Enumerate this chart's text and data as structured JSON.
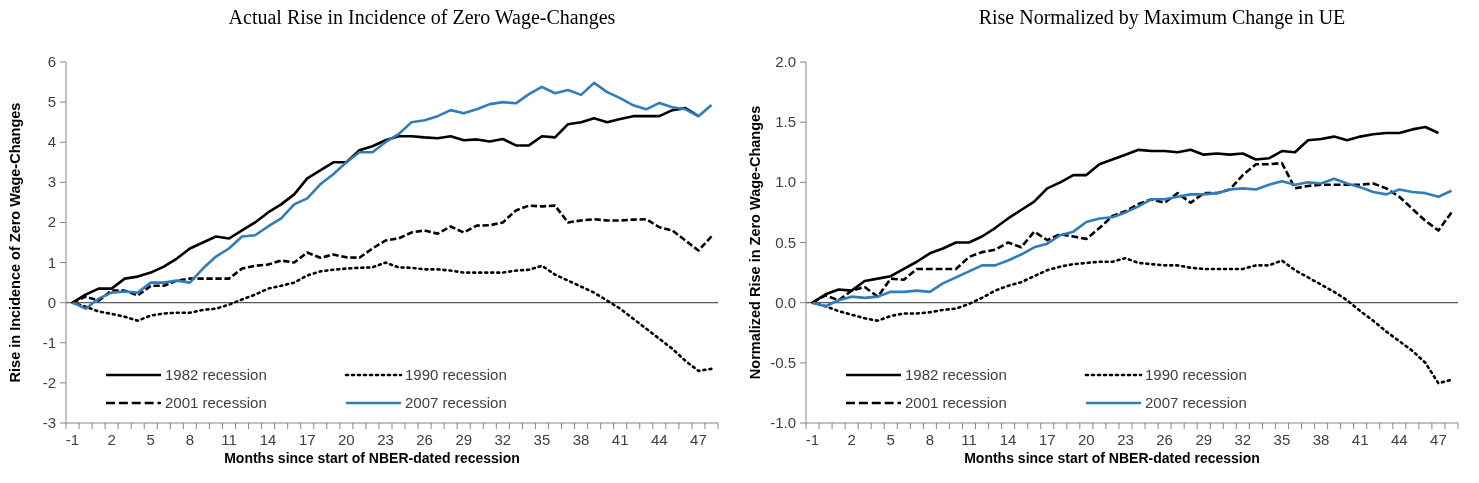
{
  "chart_data": [
    {
      "type": "line",
      "title": "Actual Rise in Incidence of Zero Wage-Changes",
      "xlabel": "Months since start of NBER-dated recession",
      "ylabel": "Rise in Incidence of Zero Wage-Changes",
      "categories": [
        "-1",
        null,
        null,
        "2",
        null,
        null,
        "5",
        null,
        null,
        "8",
        null,
        null,
        "11",
        null,
        null,
        "14",
        null,
        null,
        "17",
        null,
        null,
        "20",
        null,
        null,
        "23",
        null,
        null,
        "26",
        null,
        null,
        "29",
        null,
        null,
        "32",
        null,
        null,
        "35",
        null,
        null,
        "38",
        null,
        null,
        "41",
        null,
        null,
        "44",
        null,
        null,
        "47",
        null
      ],
      "ylim": [
        -3,
        6
      ],
      "yticks": [
        -3,
        -2,
        -1,
        0,
        1,
        2,
        3,
        4,
        5,
        6
      ],
      "legend": "bottom left",
      "ref_lines": [
        {
          "axis": "y",
          "value": 0,
          "color": "#595959"
        }
      ],
      "series": [
        {
          "name": "1982 recession",
          "color": "#000000",
          "line_style": "solid",
          "values": [
            0,
            0.2,
            0.35,
            0.35,
            0.6,
            0.65,
            0.75,
            0.9,
            1.1,
            1.35,
            1.5,
            1.65,
            1.6,
            1.8,
            2.0,
            2.25,
            2.45,
            2.7,
            3.1,
            3.3,
            3.5,
            3.5,
            3.8,
            3.9,
            4.05,
            4.15,
            4.15,
            4.12,
            4.1,
            4.15,
            4.05,
            4.07,
            4.02,
            4.08,
            3.92,
            3.92,
            4.15,
            4.12,
            4.45,
            4.5,
            4.6,
            4.5,
            4.58,
            4.65,
            4.65,
            4.65,
            4.8,
            4.85,
            4.65,
            null
          ]
        },
        {
          "name": "1990 recession",
          "color": "#000000",
          "line_style": "dotted",
          "values": [
            0,
            -0.1,
            -0.22,
            -0.28,
            -0.35,
            -0.45,
            -0.32,
            -0.27,
            -0.25,
            -0.25,
            -0.18,
            -0.15,
            -0.05,
            0.08,
            0.2,
            0.35,
            0.42,
            0.5,
            0.68,
            0.78,
            0.82,
            0.85,
            0.87,
            0.88,
            1.0,
            0.88,
            0.87,
            0.83,
            0.83,
            0.8,
            0.75,
            0.75,
            0.75,
            0.75,
            0.8,
            0.82,
            0.92,
            0.7,
            0.55,
            0.4,
            0.25,
            0.05,
            -0.15,
            -0.4,
            -0.65,
            -0.9,
            -1.15,
            -1.45,
            -1.7,
            -1.65
          ]
        },
        {
          "name": "2001 recession",
          "color": "#000000",
          "line_style": "dashed",
          "values": [
            0,
            0.15,
            0.05,
            0.3,
            0.3,
            0.18,
            0.42,
            0.42,
            0.55,
            0.6,
            0.6,
            0.6,
            0.6,
            0.85,
            0.92,
            0.95,
            1.05,
            1.0,
            1.25,
            1.12,
            1.2,
            1.13,
            1.12,
            1.35,
            1.55,
            1.6,
            1.75,
            1.8,
            1.72,
            1.9,
            1.75,
            1.92,
            1.93,
            2.0,
            2.3,
            2.42,
            2.4,
            2.42,
            2.0,
            2.05,
            2.08,
            2.05,
            2.05,
            2.07,
            2.08,
            1.88,
            1.8,
            1.55,
            1.3,
            1.65
          ]
        },
        {
          "name": "2007 recession",
          "color": "#2e7dbd",
          "line_style": "solid",
          "values": [
            0,
            -0.15,
            0.1,
            0.25,
            0.28,
            0.25,
            0.5,
            0.5,
            0.55,
            0.5,
            0.85,
            1.15,
            1.35,
            1.65,
            1.68,
            1.9,
            2.1,
            2.45,
            2.6,
            2.95,
            3.2,
            3.5,
            3.75,
            3.75,
            4.0,
            4.2,
            4.5,
            4.55,
            4.65,
            4.8,
            4.72,
            4.82,
            4.95,
            5.0,
            4.97,
            5.2,
            5.38,
            5.22,
            5.3,
            5.18,
            5.48,
            5.25,
            5.1,
            4.92,
            4.82,
            4.98,
            4.87,
            4.82,
            4.65,
            4.93
          ]
        }
      ]
    },
    {
      "type": "line",
      "title": "Rise Normalized by Maximum Change in UE",
      "xlabel": "Months since start of NBER-dated recession",
      "ylabel": "Normalized Rise in Zero Wage-Changes",
      "categories": [
        "-1",
        null,
        null,
        "2",
        null,
        null,
        "5",
        null,
        null,
        "8",
        null,
        null,
        "11",
        null,
        null,
        "14",
        null,
        null,
        "17",
        null,
        null,
        "20",
        null,
        null,
        "23",
        null,
        null,
        "26",
        null,
        null,
        "29",
        null,
        null,
        "32",
        null,
        null,
        "35",
        null,
        null,
        "38",
        null,
        null,
        "41",
        null,
        null,
        "44",
        null,
        null,
        "47",
        null
      ],
      "ylim": [
        -1,
        2
      ],
      "yticks": [
        {
          "value": -1,
          "label": "-1.0"
        },
        -0.5,
        {
          "value": 0,
          "label": "0.0"
        },
        0.5,
        {
          "value": 1,
          "label": "1.0"
        },
        1.5,
        {
          "value": 2,
          "label": "2.0"
        }
      ],
      "legend": "bottom left",
      "ref_lines": [
        {
          "axis": "y",
          "value": 0,
          "color": "#595959"
        }
      ],
      "series": [
        {
          "name": "1982 recession",
          "color": "#000000",
          "line_style": "solid",
          "values": [
            0,
            0.07,
            0.11,
            0.1,
            0.18,
            0.2,
            0.22,
            0.28,
            0.34,
            0.41,
            0.45,
            0.5,
            0.5,
            0.55,
            0.62,
            0.7,
            0.77,
            0.84,
            0.95,
            1.0,
            1.06,
            1.06,
            1.15,
            1.19,
            1.23,
            1.27,
            1.26,
            1.26,
            1.25,
            1.27,
            1.23,
            1.24,
            1.23,
            1.24,
            1.19,
            1.2,
            1.26,
            1.25,
            1.35,
            1.36,
            1.38,
            1.35,
            1.38,
            1.4,
            1.41,
            1.41,
            1.44,
            1.46,
            1.41,
            null
          ]
        },
        {
          "name": "1990 recession",
          "color": "#000000",
          "line_style": "dotted",
          "values": [
            0,
            -0.03,
            -0.07,
            -0.1,
            -0.13,
            -0.15,
            -0.11,
            -0.09,
            -0.09,
            -0.08,
            -0.06,
            -0.05,
            -0.01,
            0.04,
            0.1,
            0.14,
            0.17,
            0.22,
            0.27,
            0.3,
            0.32,
            0.33,
            0.34,
            0.34,
            0.37,
            0.33,
            0.32,
            0.31,
            0.31,
            0.29,
            0.28,
            0.28,
            0.28,
            0.28,
            0.31,
            0.31,
            0.35,
            0.27,
            0.21,
            0.15,
            0.09,
            0.02,
            -0.07,
            -0.15,
            -0.24,
            -0.32,
            -0.4,
            -0.5,
            -0.67,
            -0.64
          ]
        },
        {
          "name": "2001 recession",
          "color": "#000000",
          "line_style": "dashed",
          "values": [
            0,
            0.06,
            0.02,
            0.1,
            0.13,
            0.05,
            0.2,
            0.19,
            0.28,
            0.28,
            0.28,
            0.28,
            0.38,
            0.42,
            0.44,
            0.5,
            0.46,
            0.59,
            0.52,
            0.57,
            0.55,
            0.53,
            0.62,
            0.72,
            0.76,
            0.82,
            0.86,
            0.83,
            0.91,
            0.83,
            0.91,
            0.91,
            0.94,
            1.06,
            1.15,
            1.15,
            1.16,
            0.95,
            0.97,
            0.98,
            0.98,
            0.98,
            0.98,
            0.99,
            0.95,
            0.88,
            0.78,
            0.68,
            0.6,
            0.75
          ]
        },
        {
          "name": "2007 recession",
          "color": "#2e7dbd",
          "line_style": "solid",
          "values": [
            0,
            -0.03,
            0.02,
            0.05,
            0.04,
            0.05,
            0.09,
            0.09,
            0.1,
            0.09,
            0.16,
            0.21,
            0.26,
            0.31,
            0.31,
            0.35,
            0.4,
            0.46,
            0.49,
            0.56,
            0.59,
            0.67,
            0.7,
            0.71,
            0.75,
            0.8,
            0.86,
            0.86,
            0.88,
            0.9,
            0.9,
            0.91,
            0.94,
            0.95,
            0.94,
            0.98,
            1.01,
            0.98,
            1.0,
            0.99,
            1.03,
            0.99,
            0.96,
            0.92,
            0.9,
            0.94,
            0.92,
            0.91,
            0.88,
            0.93
          ]
        }
      ]
    }
  ]
}
